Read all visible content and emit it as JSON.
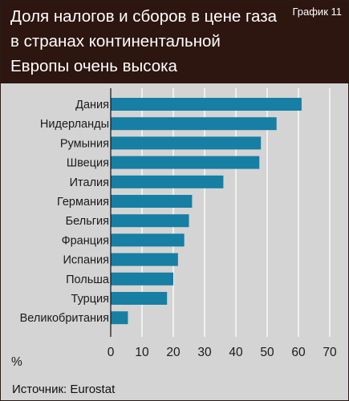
{
  "header": {
    "title": "Доля налогов и сборов в цене газа в странах континентальной Европы очень высока",
    "badge": "График 11"
  },
  "footer": {
    "source": "Источник: Eurostat"
  },
  "colors": {
    "bar": "#167fa3",
    "header_bg": "#2d1510",
    "plot_bg": "#d4d4d4",
    "grid": "#ffffff"
  },
  "chart_data": {
    "type": "bar",
    "orientation": "horizontal",
    "title": "Доля налогов и сборов в цене газа в странах континентальной Европы очень высока",
    "categories": [
      "Дания",
      "Нидерланды",
      "Румыния",
      "Швеция",
      "Италия",
      "Германия",
      "Бельгия",
      "Франция",
      "Испания",
      "Польша",
      "Турция",
      "Великобритания"
    ],
    "values": [
      61,
      53,
      48,
      47.5,
      36,
      26,
      25,
      23.5,
      21.5,
      20,
      18,
      5.5
    ],
    "xlabel": "%",
    "xlim": [
      0,
      70
    ],
    "xticks": [
      0,
      10,
      20,
      30,
      40,
      50,
      60,
      70
    ],
    "grid": true
  }
}
